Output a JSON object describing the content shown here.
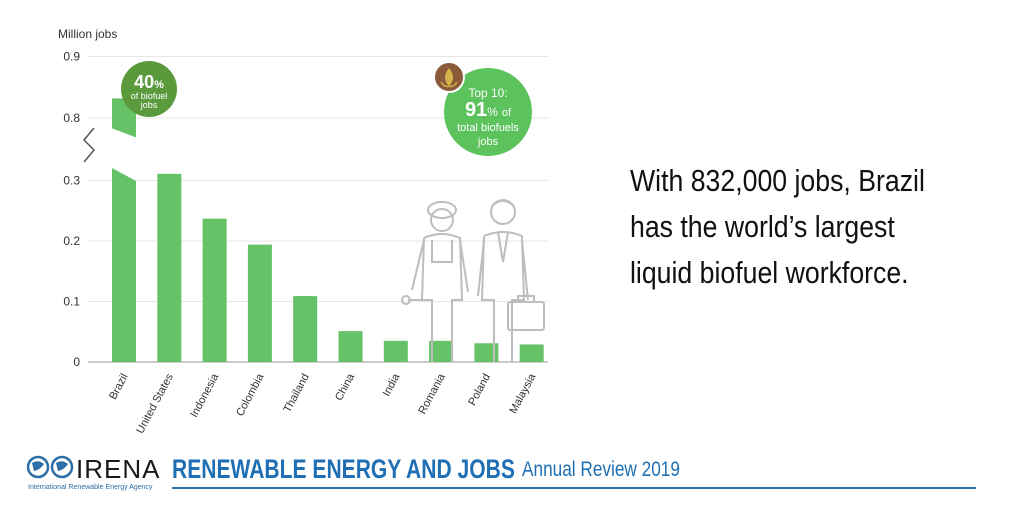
{
  "chart_data": {
    "type": "bar",
    "ylabel": "Million jobs",
    "categories": [
      "Brazil",
      "United States",
      "Indonesia",
      "Colombia",
      "Thailand",
      "China",
      "India",
      "Romania",
      "Poland",
      "Malaysia"
    ],
    "values": [
      0.832,
      0.311,
      0.237,
      0.194,
      0.109,
      0.051,
      0.035,
      0.035,
      0.031,
      0.029
    ],
    "y_ticks": [
      "0",
      "0.1",
      "0.2",
      "0.3",
      "0.8",
      "0.9"
    ],
    "axis_break": "between 0.3 and 0.8",
    "grid": true,
    "bar_color": "#66c266"
  },
  "callouts": {
    "brazil": {
      "pct": "40",
      "pct_sign": "%",
      "line1": "of biofuel",
      "line2": "jobs",
      "color": "#5a9a3c"
    },
    "top10": {
      "line1": "Top 10:",
      "pct": "91",
      "pct_sign": "%",
      "of": "of",
      "line2": "total biofuels",
      "line3": "jobs",
      "color": "#5cc35c"
    }
  },
  "headline": "With 832,000 jobs, Brazil has the world’s largest liquid biofuel workforce.",
  "footer": {
    "brand": "IRENA",
    "brand_sub": "International Renewable Energy Agency",
    "title": "RENEWABLE ENERGY AND JOBS",
    "subtitle": "Annual Review 2019",
    "accent": "#1e6fb4"
  }
}
